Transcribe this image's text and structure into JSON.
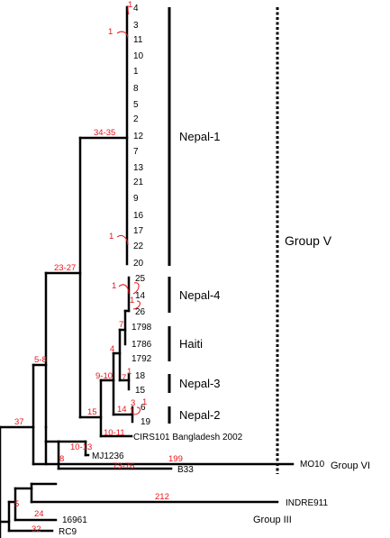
{
  "colors": {
    "branch": "#000000",
    "mutation_label": "#e8141c",
    "background": "#ffffff"
  },
  "tips": [
    "4",
    "3",
    "11",
    "10",
    "1",
    "8",
    "5",
    "2",
    "12",
    "7",
    "13",
    "21",
    "9",
    "16",
    "17",
    "22",
    "20",
    "25",
    "14",
    "26",
    "1798",
    "1786",
    "1792",
    "18",
    "15",
    "6",
    "19",
    "CIRS101 Bangladesh 2002",
    "MJ1236",
    "B33",
    "MO10",
    "INDRE911",
    "16961",
    "RC9"
  ],
  "branch_labels": [
    "34-35",
    "23-27",
    "5-8",
    "37",
    "15",
    "9-10",
    "4",
    "7",
    "7",
    "1",
    "1",
    "3",
    "14",
    "1",
    "10-11",
    "10-13",
    "8",
    "73-76",
    "199",
    "212",
    "5",
    "24",
    "32",
    "1",
    "1",
    "1",
    "1",
    "1"
  ],
  "clades": [
    "Nepal-1",
    "Nepal-4",
    "Haiti",
    "Nepal-3",
    "Nepal-2"
  ],
  "groups": [
    "Group V",
    "Group VI",
    "Group III"
  ]
}
